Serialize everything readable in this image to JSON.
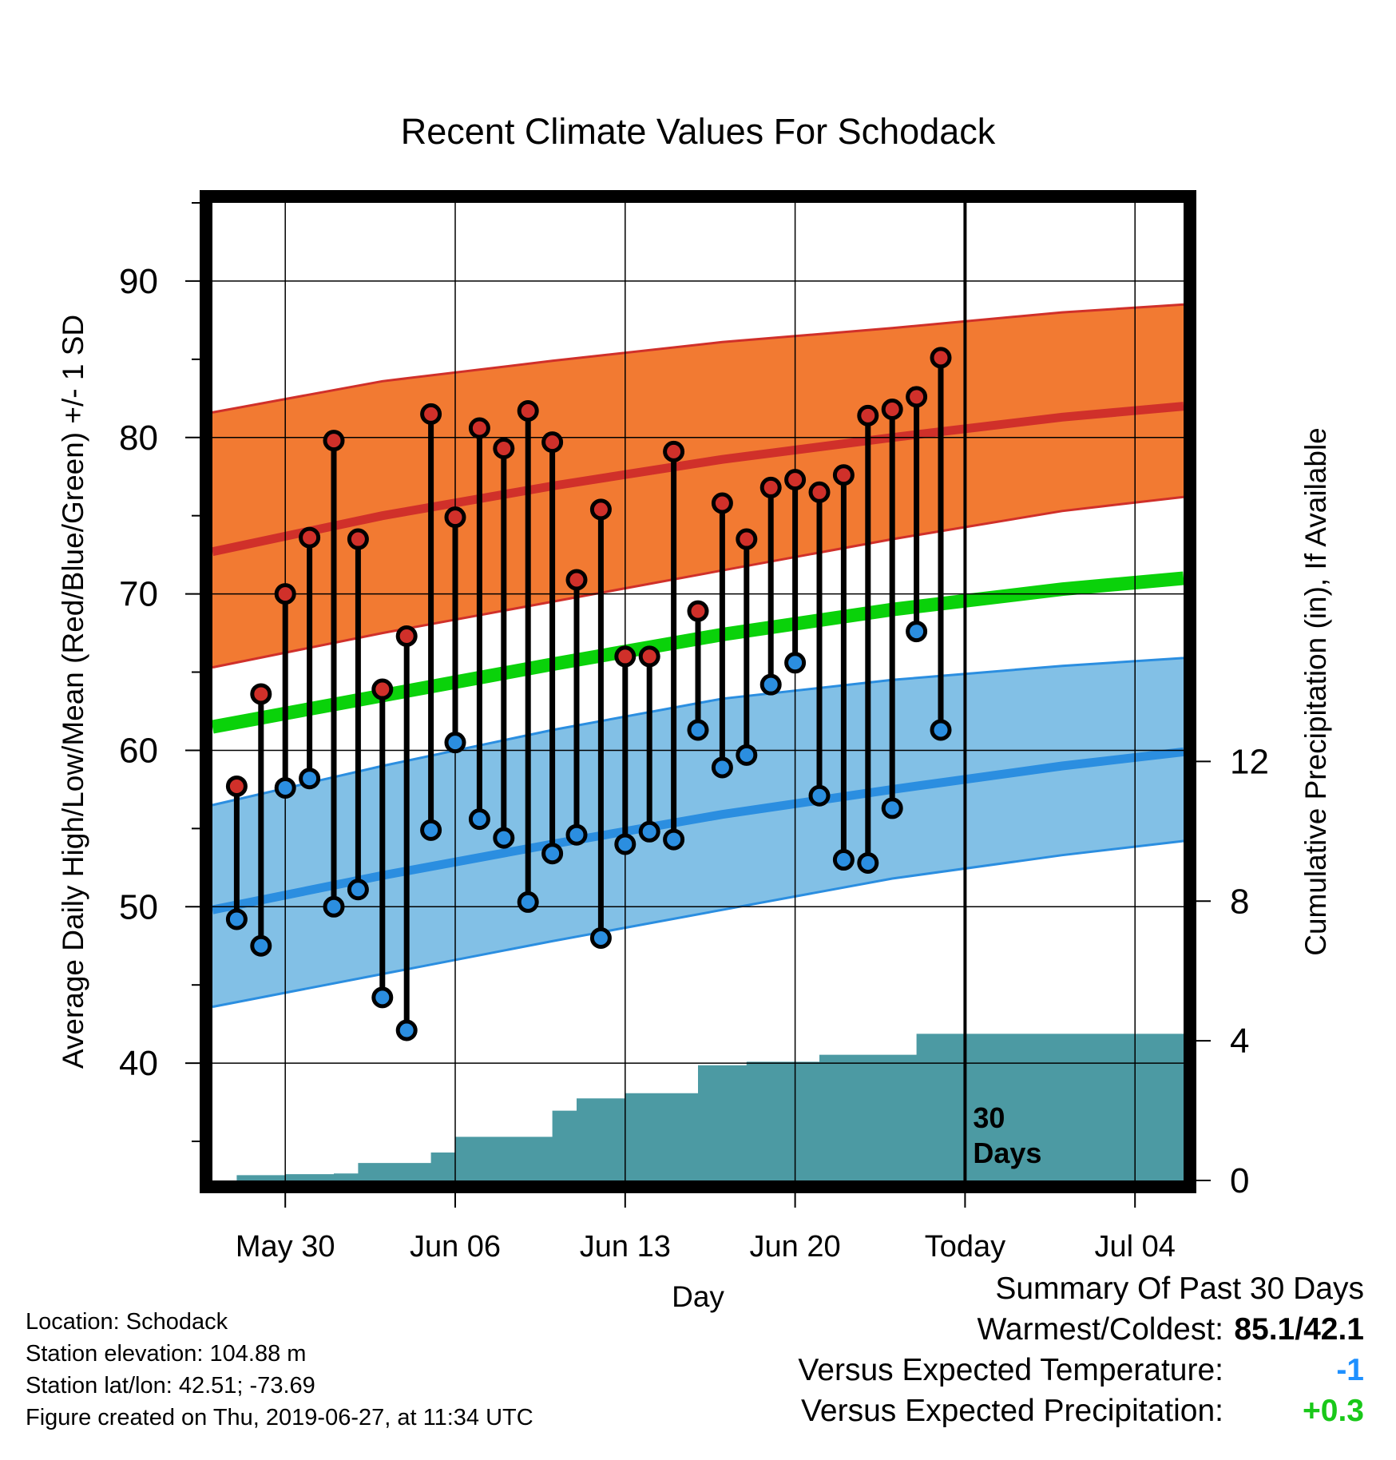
{
  "chart_data": {
    "type": "line",
    "title": "Recent Climate Values For Schodack",
    "xlabel": "Day",
    "ylabel_left": "Average Daily High/Low/Mean (Red/Blue/Green) +/- 1 SD",
    "ylabel_right": "Cumulative Precipitation (in), If Available",
    "x_start_date": "2019-05-27",
    "x_end_date": "2019-07-06",
    "x_ticks": [
      {
        "date": "2019-05-30",
        "label": "May 30"
      },
      {
        "date": "2019-06-06",
        "label": "Jun 06"
      },
      {
        "date": "2019-06-13",
        "label": "Jun 13"
      },
      {
        "date": "2019-06-20",
        "label": "Jun 20"
      },
      {
        "date": "2019-06-27",
        "label": "Today"
      },
      {
        "date": "2019-07-04",
        "label": "Jul 04"
      }
    ],
    "ylim_left": [
      32.5,
      95
    ],
    "y_ticks_left": [
      40,
      50,
      60,
      70,
      80,
      90
    ],
    "ylim_right": [
      0,
      28
    ],
    "y_ticks_right": [
      0,
      4,
      8,
      12
    ],
    "grid": true,
    "today_date": "2019-06-27",
    "today_label_line1": "30",
    "today_label_line2": "Days",
    "normals": {
      "dates": [
        "2019-05-27",
        "2019-06-03",
        "2019-06-10",
        "2019-06-17",
        "2019-06-24",
        "2019-07-01",
        "2019-07-06"
      ],
      "high_mean": [
        72.7,
        75.0,
        76.9,
        78.6,
        80.0,
        81.3,
        82.0
      ],
      "high_upper": [
        81.6,
        83.6,
        84.9,
        86.1,
        87.0,
        88.0,
        88.5
      ],
      "high_lower": [
        65.3,
        67.5,
        69.5,
        71.5,
        73.5,
        75.3,
        76.2
      ],
      "mean": [
        61.5,
        63.5,
        65.5,
        67.4,
        69.0,
        70.3,
        71.0
      ],
      "low_mean": [
        49.8,
        52.0,
        54.0,
        55.9,
        57.5,
        59.0,
        59.9
      ],
      "low_upper": [
        56.5,
        59.0,
        61.3,
        63.3,
        64.5,
        65.4,
        65.9
      ],
      "low_lower": [
        43.6,
        45.7,
        47.8,
        49.8,
        51.8,
        53.3,
        54.2
      ]
    },
    "series": [
      {
        "name": "High",
        "color": "#d0302a",
        "dates": [
          "2019-05-28",
          "2019-05-29",
          "2019-05-30",
          "2019-05-31",
          "2019-06-01",
          "2019-06-02",
          "2019-06-03",
          "2019-06-04",
          "2019-06-05",
          "2019-06-06",
          "2019-06-07",
          "2019-06-08",
          "2019-06-09",
          "2019-06-10",
          "2019-06-11",
          "2019-06-12",
          "2019-06-13",
          "2019-06-14",
          "2019-06-15",
          "2019-06-16",
          "2019-06-17",
          "2019-06-18",
          "2019-06-19",
          "2019-06-20",
          "2019-06-21",
          "2019-06-22",
          "2019-06-23",
          "2019-06-24",
          "2019-06-25",
          "2019-06-26"
        ],
        "values": [
          57.7,
          63.6,
          70.0,
          73.6,
          79.8,
          73.5,
          63.9,
          67.3,
          81.5,
          74.9,
          80.6,
          79.3,
          81.7,
          79.7,
          70.9,
          75.4,
          66.0,
          66.0,
          79.1,
          68.9,
          75.8,
          73.5,
          76.8,
          77.3,
          76.5,
          77.6,
          81.4,
          81.8,
          82.6,
          85.1
        ]
      },
      {
        "name": "Low",
        "color": "#2b8ee0",
        "values": [
          49.2,
          47.5,
          57.6,
          58.2,
          50.0,
          51.1,
          44.2,
          42.1,
          54.9,
          60.5,
          55.6,
          54.4,
          50.3,
          53.4,
          54.6,
          48.0,
          54.0,
          54.8,
          54.3,
          61.3,
          58.9,
          59.7,
          64.2,
          65.6,
          57.1,
          53.0,
          52.8,
          56.3,
          67.6,
          61.3
        ]
      },
      {
        "name": "Cumulative Precipitation",
        "color": "#4c9aa3",
        "values": [
          0.15,
          0.15,
          0.18,
          0.18,
          0.2,
          0.5,
          0.5,
          0.5,
          0.8,
          1.25,
          1.25,
          1.25,
          1.25,
          2.0,
          2.35,
          2.35,
          2.5,
          2.5,
          2.5,
          3.3,
          3.3,
          3.4,
          3.4,
          3.4,
          3.6,
          3.6,
          3.6,
          3.6,
          4.2,
          4.2
        ]
      }
    ]
  },
  "footer": {
    "location": "Location: Schodack",
    "elevation": "Station elevation: 104.88 m",
    "latlon": "Station lat/lon: 42.51; -73.69",
    "created": "Figure created on Thu, 2019-06-27, at 11:34 UTC"
  },
  "summary": {
    "heading": "Summary Of Past 30 Days",
    "warmest_coldest_label": "Warmest/Coldest:",
    "warmest_coldest_value": "85.1/42.1",
    "temp_label": "Versus Expected Temperature:",
    "temp_value": "-1",
    "precip_label": "Versus Expected Precipitation:",
    "precip_value": "+0.3"
  },
  "colors": {
    "high_band": "#f27a32",
    "high_line": "#d0302a",
    "low_band": "#82c0e6",
    "low_line": "#2b8ee0",
    "mean_line": "#0ad20a",
    "precip": "#4c9aa3",
    "temp_value": "#1e90ff",
    "precip_value": "#19c819"
  }
}
